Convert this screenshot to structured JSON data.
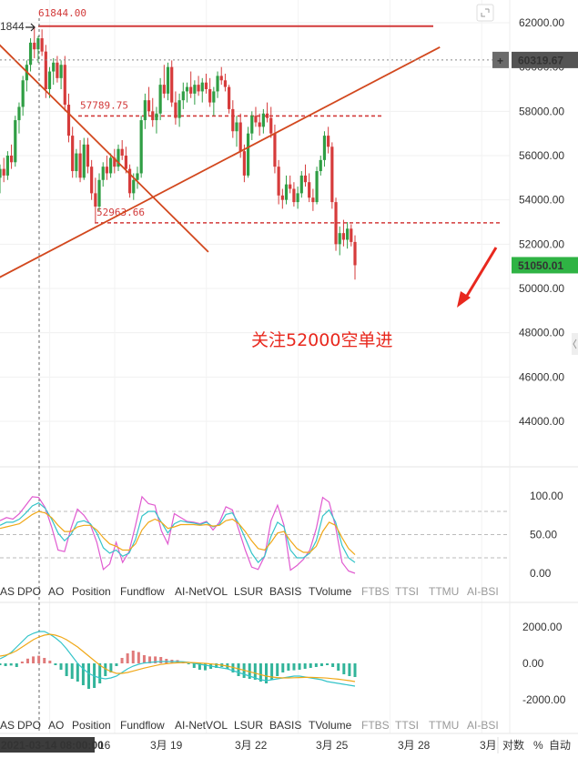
{
  "chart_data": {
    "type": "candlestick",
    "price_axis": {
      "ylim": [
        42500,
        63000
      ],
      "ticks": [
        "62000.00",
        "60000.00",
        "58000.00",
        "56000.00",
        "54000.00",
        "52000.00",
        "50000.00",
        "48000.00",
        "46000.00",
        "44000.00"
      ]
    },
    "last_price": "51050.01",
    "crosshair_price": "60319.67",
    "crosshair_date": "2021-03-14 08:00:00",
    "high_label": "61844.00",
    "left_cut_label": "1844",
    "levels": [
      {
        "value": 61844,
        "label": "61844.00",
        "style": "solid"
      },
      {
        "value": 57789.75,
        "label": "57789.75",
        "style": "dashed"
      },
      {
        "value": 52963.66,
        "label": "52963.66",
        "style": "dashed"
      }
    ],
    "trendlines": [
      {
        "from": [
          -5,
          49600
        ],
        "to": [
          57,
          60900
        ]
      },
      {
        "from": [
          -2.5,
          61844
        ],
        "to": [
          27,
          51650
        ]
      }
    ],
    "annotation": "关注52000空单进",
    "date_labels": [
      {
        "label": "16",
        "x": 1.5
      },
      {
        "label": "3月 19",
        "x": 10
      },
      {
        "label": "3月 22",
        "x": 22
      },
      {
        "label": "3月 25",
        "x": 34
      },
      {
        "label": "3月 28",
        "x": 46
      },
      {
        "label": "3月",
        "x": 58
      }
    ],
    "candles": [
      [
        55000,
        55600,
        54300,
        55400
      ],
      [
        55400,
        55900,
        54800,
        55100
      ],
      [
        55100,
        56200,
        54900,
        56000
      ],
      [
        56000,
        56500,
        55400,
        55700
      ],
      [
        55700,
        57800,
        55500,
        57600
      ],
      [
        57600,
        58400,
        57000,
        58200
      ],
      [
        58200,
        59600,
        57800,
        59400
      ],
      [
        59400,
        60300,
        58900,
        60100
      ],
      [
        60100,
        61300,
        59800,
        61100
      ],
      [
        61100,
        61844,
        60400,
        60800
      ],
      [
        60800,
        61400,
        60200,
        61300
      ],
      [
        61300,
        61700,
        60500,
        60700
      ],
      [
        60700,
        61000,
        58600,
        59000
      ],
      [
        59000,
        60000,
        58600,
        59800
      ],
      [
        59800,
        60400,
        59200,
        60200
      ],
      [
        60200,
        60500,
        59300,
        59500
      ],
      [
        59500,
        60300,
        59000,
        60100
      ],
      [
        60100,
        60500,
        58000,
        58300
      ],
      [
        58300,
        58800,
        56600,
        56900
      ],
      [
        56900,
        57300,
        55000,
        55300
      ],
      [
        55300,
        56300,
        55000,
        56100
      ],
      [
        56100,
        56700,
        54800,
        55000
      ],
      [
        55000,
        56800,
        54900,
        56500
      ],
      [
        56500,
        56800,
        55200,
        55500
      ],
      [
        55500,
        55800,
        54000,
        54300
      ],
      [
        54300,
        55000,
        53000,
        53700
      ],
      [
        53700,
        55200,
        53500,
        54900
      ],
      [
        54900,
        55700,
        54600,
        55500
      ],
      [
        55500,
        56000,
        54900,
        55200
      ],
      [
        55200,
        56100,
        55000,
        55900
      ],
      [
        55900,
        56300,
        55200,
        55500
      ],
      [
        55500,
        56500,
        55300,
        56300
      ],
      [
        56300,
        56700,
        55800,
        56000
      ],
      [
        56000,
        56400,
        55200,
        55400
      ],
      [
        55400,
        55600,
        54100,
        54300
      ],
      [
        54300,
        55200,
        54000,
        54900
      ],
      [
        54900,
        55500,
        54500,
        55200
      ],
      [
        55200,
        57800,
        55000,
        57600
      ],
      [
        57600,
        58800,
        57200,
        58500
      ],
      [
        58500,
        59100,
        57800,
        58000
      ],
      [
        58000,
        58600,
        57300,
        57600
      ],
      [
        57600,
        58200,
        57000,
        57900
      ],
      [
        57900,
        59500,
        57600,
        59200
      ],
      [
        59200,
        60100,
        58600,
        58800
      ],
      [
        58800,
        60200,
        58500,
        60000
      ],
      [
        60000,
        60300,
        58200,
        58400
      ],
      [
        58400,
        58900,
        57400,
        57700
      ],
      [
        57700,
        58800,
        57300,
        58500
      ],
      [
        58500,
        59300,
        58100,
        58900
      ],
      [
        58900,
        59300,
        58400,
        59100
      ],
      [
        59100,
        59800,
        58600,
        58800
      ],
      [
        58800,
        59400,
        58300,
        59200
      ],
      [
        59200,
        59600,
        58700,
        58900
      ],
      [
        58900,
        59500,
        58400,
        59300
      ],
      [
        59300,
        59700,
        58800,
        59000
      ],
      [
        59000,
        59500,
        58200,
        58400
      ],
      [
        58400,
        59100,
        57800,
        58900
      ],
      [
        58900,
        59800,
        58600,
        59600
      ],
      [
        59600,
        60000,
        59200,
        59400
      ],
      [
        59400,
        59700,
        58900,
        59100
      ],
      [
        59100,
        59200,
        57900,
        58100
      ],
      [
        58100,
        58500,
        56800,
        57100
      ],
      [
        57100,
        57800,
        56400,
        57500
      ],
      [
        57500,
        57900,
        55900,
        56200
      ],
      [
        56200,
        56500,
        54800,
        55100
      ],
      [
        55100,
        57300,
        55000,
        57000
      ],
      [
        57000,
        58000,
        56700,
        57800
      ],
      [
        57800,
        58200,
        57300,
        57500
      ],
      [
        57500,
        57900,
        56900,
        57300
      ],
      [
        57300,
        58100,
        57000,
        57900
      ],
      [
        57900,
        58400,
        57500,
        57700
      ],
      [
        57700,
        58200,
        56800,
        57000
      ],
      [
        57000,
        57400,
        55200,
        55500
      ],
      [
        55500,
        55800,
        53800,
        54200
      ],
      [
        54200,
        54500,
        53600,
        54000
      ],
      [
        54000,
        55100,
        53800,
        54700
      ],
      [
        54700,
        55100,
        54300,
        54500
      ],
      [
        54500,
        54800,
        53700,
        53900
      ],
      [
        53900,
        54600,
        53600,
        54300
      ],
      [
        54300,
        55300,
        54100,
        55100
      ],
      [
        55100,
        55600,
        54600,
        54800
      ],
      [
        54800,
        55200,
        53900,
        54100
      ],
      [
        54100,
        54500,
        53500,
        53900
      ],
      [
        53900,
        55500,
        53800,
        55300
      ],
      [
        55300,
        56000,
        55100,
        55800
      ],
      [
        55800,
        57100,
        55500,
        56900
      ],
      [
        56900,
        57300,
        56100,
        56400
      ],
      [
        56400,
        56600,
        53600,
        53900
      ],
      [
        53900,
        54100,
        51700,
        52000
      ],
      [
        52000,
        52800,
        51500,
        52500
      ],
      [
        52500,
        53100,
        51900,
        52200
      ],
      [
        52200,
        53000,
        51800,
        52700
      ],
      [
        52700,
        52900,
        51900,
        52100
      ],
      [
        52100,
        52400,
        50400,
        51050
      ]
    ],
    "oscillator": {
      "ticks": [
        "100.00",
        "50.00",
        "0.00"
      ],
      "ylim": [
        -10,
        115
      ],
      "guides": [
        80,
        50,
        20
      ],
      "pink": [
        68,
        72,
        70,
        77,
        88,
        99,
        98,
        85,
        60,
        30,
        28,
        58,
        83,
        75,
        63,
        40,
        5,
        12,
        40,
        14,
        28,
        62,
        99,
        90,
        88,
        55,
        38,
        77,
        72,
        67,
        66,
        64,
        67,
        56,
        66,
        86,
        82,
        56,
        30,
        8,
        5,
        22,
        68,
        88,
        62,
        4,
        10,
        18,
        30,
        58,
        98,
        92,
        60,
        14,
        3,
        0
      ],
      "cyan": [
        62,
        66,
        66,
        70,
        78,
        87,
        91,
        84,
        70,
        52,
        42,
        50,
        66,
        68,
        64,
        52,
        33,
        26,
        30,
        22,
        26,
        44,
        74,
        80,
        80,
        66,
        52,
        64,
        68,
        66,
        65,
        63,
        66,
        60,
        63,
        76,
        78,
        64,
        45,
        26,
        14,
        22,
        48,
        66,
        60,
        30,
        20,
        20,
        26,
        42,
        74,
        82,
        66,
        36,
        20,
        14
      ],
      "orange": [
        58,
        60,
        62,
        64,
        70,
        76,
        80,
        78,
        72,
        62,
        54,
        54,
        60,
        62,
        62,
        56,
        46,
        38,
        35,
        30,
        30,
        38,
        56,
        66,
        70,
        66,
        58,
        60,
        63,
        63,
        63,
        62,
        63,
        61,
        62,
        68,
        70,
        64,
        54,
        42,
        32,
        30,
        40,
        52,
        54,
        42,
        32,
        27,
        27,
        35,
        54,
        66,
        62,
        46,
        32,
        24
      ]
    },
    "macd": {
      "ticks": [
        "2000.00",
        "0.00",
        "-2000.00"
      ],
      "ylim": [
        -2300,
        2350
      ],
      "hist": [
        -100,
        -150,
        -120,
        -200,
        100,
        260,
        380,
        420,
        300,
        150,
        -100,
        -350,
        -700,
        -850,
        -1000,
        -1200,
        -1400,
        -1350,
        -1100,
        -700,
        -500,
        -150,
        300,
        550,
        700,
        620,
        450,
        380,
        380,
        350,
        250,
        200,
        180,
        100,
        -50,
        -250,
        -350,
        -380,
        -300,
        -250,
        -200,
        -300,
        -500,
        -700,
        -800,
        -850,
        -900,
        -1000,
        -1100,
        -900,
        -700,
        -500,
        -400,
        -380,
        -350,
        -300,
        -250,
        -200,
        -150,
        -100,
        -200,
        -400,
        -600,
        -700,
        -750
      ],
      "dif": [
        250,
        400,
        600,
        900,
        1200,
        1500,
        1650,
        1750,
        1750,
        1600,
        1400,
        1150,
        800,
        400,
        0,
        -300,
        -550,
        -700,
        -800,
        -850,
        -800,
        -700,
        -500,
        -300,
        -150,
        -50,
        20,
        50,
        80,
        100,
        100,
        100,
        100,
        90,
        60,
        0,
        -50,
        -100,
        -150,
        -200,
        -250,
        -300,
        -400,
        -500,
        -600,
        -700,
        -800,
        -900,
        -950,
        -900,
        -850,
        -800,
        -750,
        -700,
        -700,
        -750,
        -800,
        -850,
        -900,
        -1000,
        -1050,
        -1100,
        -1150,
        -1200,
        -1250
      ],
      "dea": [
        400,
        450,
        550,
        700,
        900,
        1100,
        1300,
        1450,
        1550,
        1600,
        1550,
        1450,
        1300,
        1100,
        900,
        650,
        400,
        150,
        -100,
        -300,
        -450,
        -550,
        -550,
        -500,
        -420,
        -340,
        -260,
        -190,
        -120,
        -60,
        -20,
        10,
        30,
        45,
        50,
        40,
        20,
        0,
        -30,
        -60,
        -100,
        -150,
        -220,
        -300,
        -380,
        -460,
        -540,
        -620,
        -700,
        -750,
        -780,
        -800,
        -800,
        -790,
        -780,
        -770,
        -770,
        -780,
        -790,
        -810,
        -840,
        -870,
        -910,
        -950,
        -1000
      ]
    },
    "tabs": [
      "AS",
      "DPO",
      "AO",
      "Position",
      "Fundflow",
      "AI-NetVOL",
      "LSUR",
      "BASIS",
      "TVolume",
      "FTBS",
      "TTSI",
      "TTMU",
      "AI-BSI"
    ],
    "bottom_controls": {
      "log": "对数",
      "percent": "%",
      "auto": "自动"
    }
  }
}
